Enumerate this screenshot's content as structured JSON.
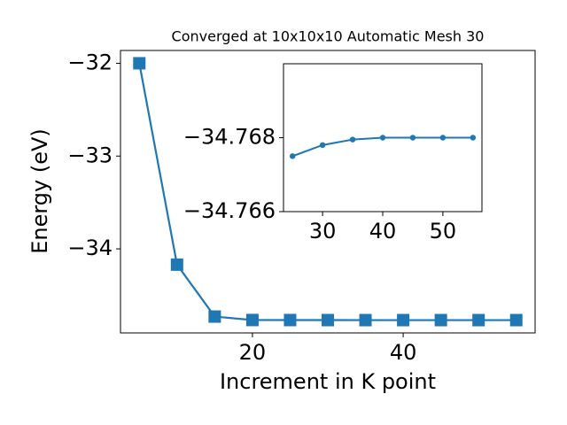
{
  "chart_data": [
    {
      "type": "line",
      "title": "Converged at 10x10x10 Automatic Mesh 30",
      "x_label": "Increment in K point",
      "y_label": "Energy (eV)",
      "x": [
        5,
        10,
        15,
        20,
        25,
        30,
        35,
        40,
        45,
        50,
        55
      ],
      "series": [
        {
          "color": "#1f77b4",
          "marker": "square",
          "values": [
            -32.0,
            -34.17,
            -34.73,
            -34.767,
            -34.7675,
            -34.7678,
            -34.768,
            -34.768,
            -34.768,
            -34.768,
            -34.768
          ]
        }
      ],
      "xlim": [
        2.5,
        57.5
      ],
      "ylim": [
        -34.906,
        -31.862
      ],
      "xticks": [
        20,
        40
      ],
      "yticks": [
        {
          "value": -34,
          "label": "−34"
        },
        {
          "value": -33,
          "label": "−33"
        },
        {
          "value": -32,
          "label": "−32"
        }
      ]
    },
    {
      "type": "line",
      "x": [
        25,
        30,
        35,
        40,
        45,
        50,
        55
      ],
      "series": [
        {
          "color": "#1f77b4",
          "marker": "circle",
          "values": [
            -34.7675,
            -34.7678,
            -34.76795,
            -34.768,
            -34.768,
            -34.768,
            -34.768
          ]
        }
      ],
      "xlim": [
        23.5,
        56.5
      ],
      "ylim": [
        -34.77,
        -34.766
      ],
      "invert_y": true,
      "xticks": [
        30,
        40,
        50
      ],
      "yticks": [
        {
          "value": -34.768,
          "label": "−34.768"
        },
        {
          "value": -34.766,
          "label": "−34.766"
        }
      ]
    }
  ]
}
